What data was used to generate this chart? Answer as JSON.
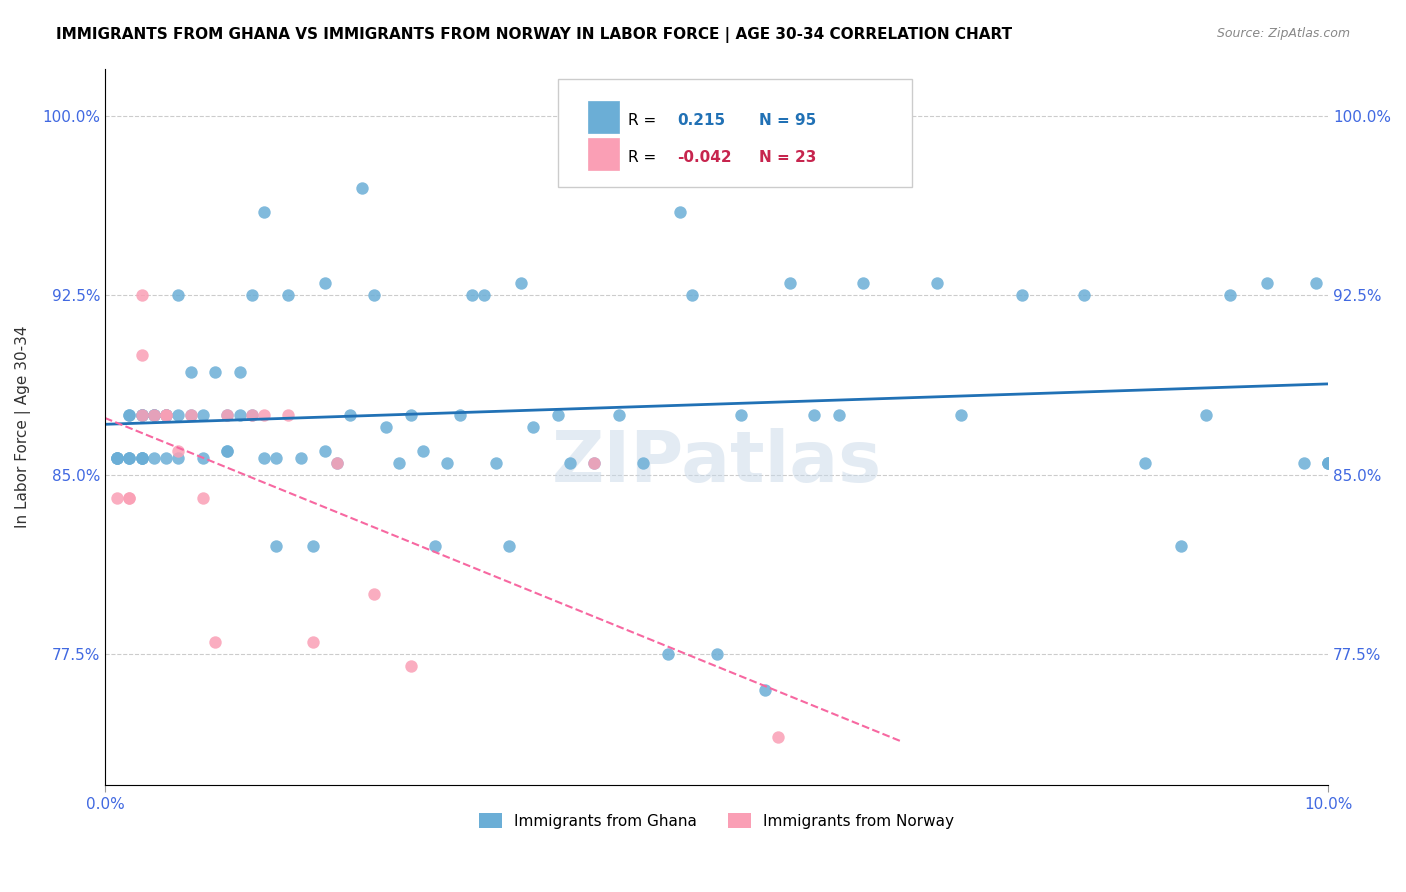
{
  "title": "IMMIGRANTS FROM GHANA VS IMMIGRANTS FROM NORWAY IN LABOR FORCE | AGE 30-34 CORRELATION CHART",
  "source": "Source: ZipAtlas.com",
  "xlabel": "",
  "ylabel": "In Labor Force | Age 30-34",
  "xlim": [
    0.0,
    0.1
  ],
  "ylim": [
    0.72,
    1.02
  ],
  "xtick_labels": [
    "0.0%",
    "10.0%"
  ],
  "ytick_positions": [
    0.775,
    0.85,
    0.925,
    1.0
  ],
  "ytick_labels": [
    "77.5%",
    "85.0%",
    "92.5%",
    "100.0%"
  ],
  "ghana_color": "#6baed6",
  "norway_color": "#fa9fb5",
  "ghana_line_color": "#2171b5",
  "norway_line_color": "#f768a1",
  "ghana_R": 0.215,
  "ghana_N": 95,
  "norway_R": -0.042,
  "norway_N": 23,
  "watermark": "ZIPatlas",
  "ghana_x": [
    0.001,
    0.001,
    0.001,
    0.001,
    0.002,
    0.002,
    0.002,
    0.002,
    0.002,
    0.003,
    0.003,
    0.003,
    0.003,
    0.003,
    0.003,
    0.003,
    0.004,
    0.004,
    0.004,
    0.004,
    0.005,
    0.005,
    0.005,
    0.005,
    0.006,
    0.006,
    0.006,
    0.007,
    0.007,
    0.008,
    0.008,
    0.009,
    0.01,
    0.01,
    0.01,
    0.011,
    0.011,
    0.012,
    0.012,
    0.013,
    0.013,
    0.014,
    0.014,
    0.015,
    0.016,
    0.017,
    0.018,
    0.018,
    0.019,
    0.02,
    0.021,
    0.022,
    0.023,
    0.024,
    0.025,
    0.026,
    0.027,
    0.028,
    0.029,
    0.03,
    0.031,
    0.032,
    0.033,
    0.034,
    0.035,
    0.037,
    0.038,
    0.04,
    0.042,
    0.044,
    0.046,
    0.047,
    0.048,
    0.05,
    0.052,
    0.054,
    0.056,
    0.058,
    0.06,
    0.062,
    0.065,
    0.068,
    0.07,
    0.075,
    0.08,
    0.085,
    0.088,
    0.09,
    0.092,
    0.095,
    0.098,
    0.099,
    0.1,
    0.1,
    0.1
  ],
  "ghana_y": [
    0.857,
    0.857,
    0.857,
    0.857,
    0.857,
    0.875,
    0.857,
    0.857,
    0.875,
    0.857,
    0.875,
    0.857,
    0.875,
    0.857,
    0.857,
    0.875,
    0.875,
    0.875,
    0.857,
    0.875,
    0.875,
    0.875,
    0.857,
    0.875,
    0.925,
    0.875,
    0.857,
    0.893,
    0.875,
    0.875,
    0.857,
    0.893,
    0.86,
    0.86,
    0.875,
    0.893,
    0.875,
    0.925,
    0.875,
    0.96,
    0.857,
    0.857,
    0.82,
    0.925,
    0.857,
    0.82,
    0.93,
    0.86,
    0.855,
    0.875,
    0.97,
    0.925,
    0.87,
    0.855,
    0.875,
    0.86,
    0.82,
    0.855,
    0.875,
    0.925,
    0.925,
    0.855,
    0.82,
    0.93,
    0.87,
    0.875,
    0.855,
    0.855,
    0.875,
    0.855,
    0.775,
    0.96,
    0.925,
    0.775,
    0.875,
    0.76,
    0.93,
    0.875,
    0.875,
    0.93,
    1.0,
    0.93,
    0.875,
    0.925,
    0.925,
    0.855,
    0.82,
    0.875,
    0.925,
    0.93,
    0.855,
    0.93,
    0.855,
    0.855,
    0.855
  ],
  "norway_x": [
    0.001,
    0.002,
    0.002,
    0.003,
    0.003,
    0.003,
    0.004,
    0.005,
    0.005,
    0.006,
    0.007,
    0.008,
    0.009,
    0.01,
    0.012,
    0.013,
    0.015,
    0.017,
    0.019,
    0.022,
    0.025,
    0.04,
    0.055
  ],
  "norway_y": [
    0.84,
    0.84,
    0.84,
    0.925,
    0.9,
    0.875,
    0.875,
    0.875,
    0.875,
    0.86,
    0.875,
    0.84,
    0.78,
    0.875,
    0.875,
    0.875,
    0.875,
    0.78,
    0.855,
    0.8,
    0.77,
    0.855,
    0.74
  ]
}
